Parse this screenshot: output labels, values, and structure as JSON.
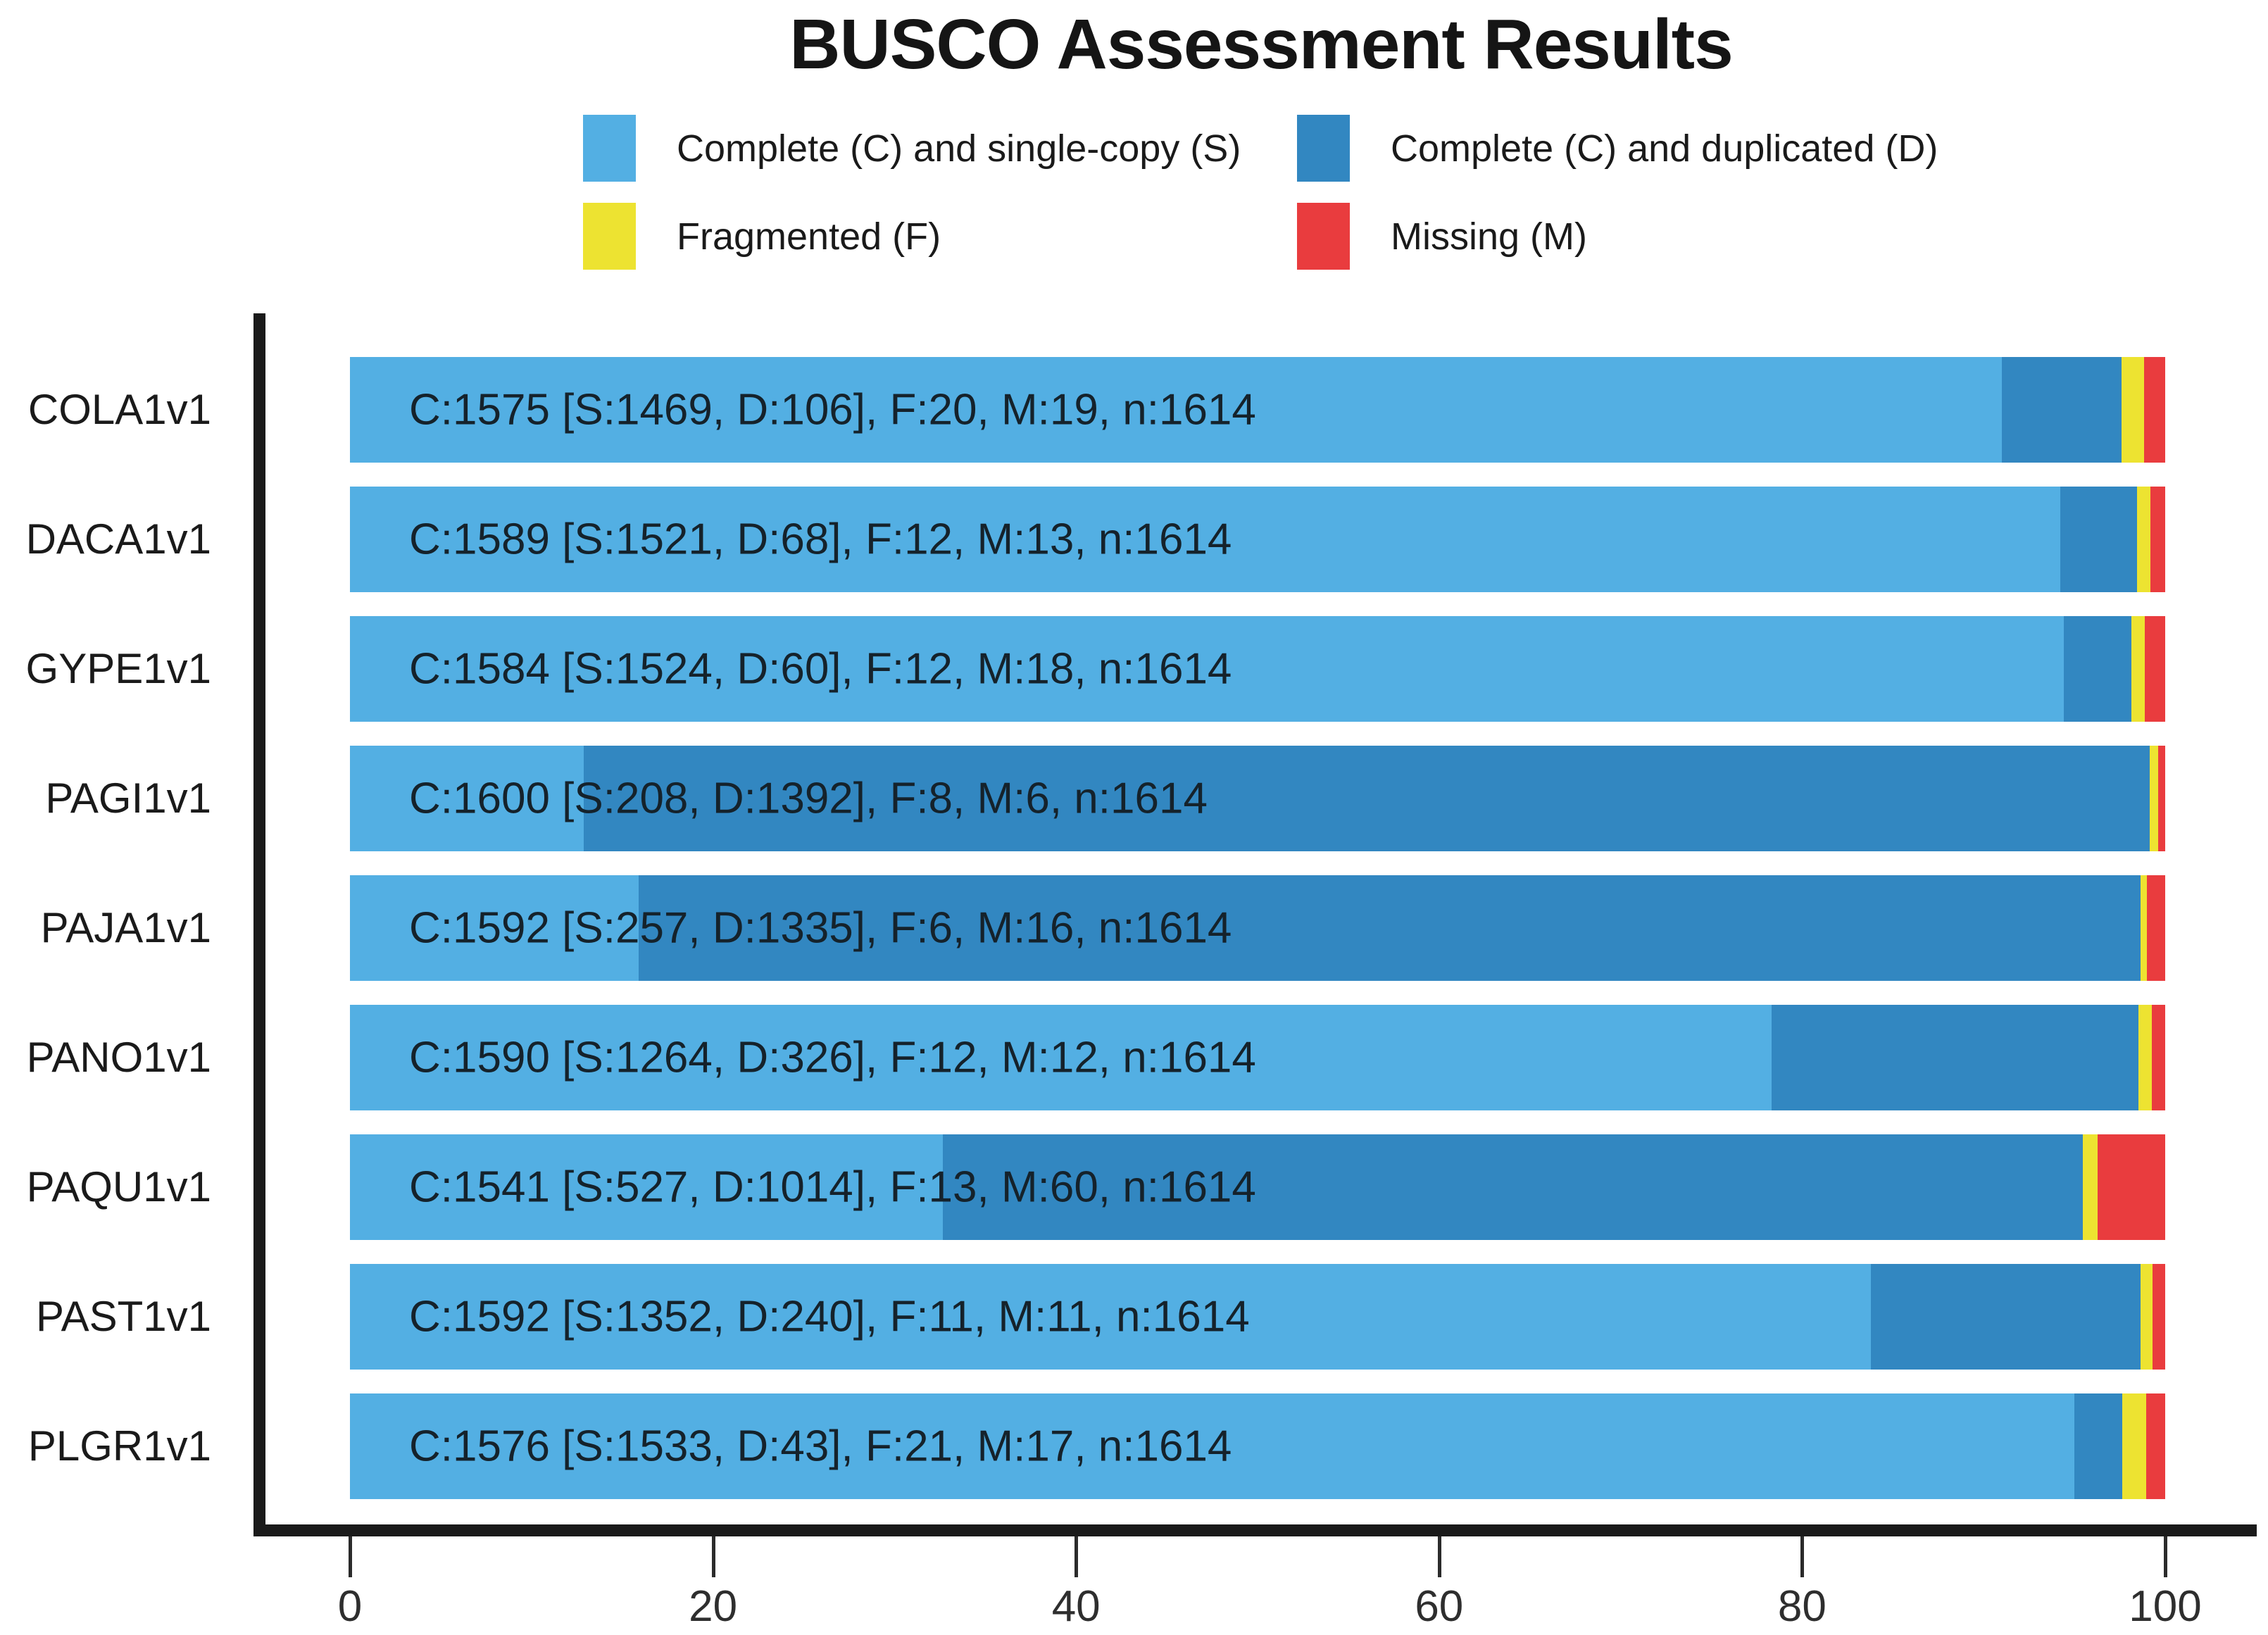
{
  "title": "BUSCO Assessment Results",
  "colors": {
    "single": "#53AFE3",
    "duplicated": "#3287C1",
    "fragmented": "#EDE331",
    "missing": "#E93C3E",
    "axis": "#1a1a1a",
    "background": "#ffffff"
  },
  "legend": {
    "items": [
      {
        "key": "single",
        "label": "Complete (C) and single-copy (S)",
        "color": "#53AFE3"
      },
      {
        "key": "duplicated",
        "label": "Complete (C) and duplicated (D)",
        "color": "#3287C1"
      },
      {
        "key": "fragmented",
        "label": "Fragmented (F)",
        "color": "#EDE331"
      },
      {
        "key": "missing",
        "label": "Missing (M)",
        "color": "#E93C3E"
      }
    ]
  },
  "chart_data": {
    "type": "bar",
    "orientation": "horizontal",
    "stacked": true,
    "title": "BUSCO Assessment Results",
    "xlabel": "",
    "ylabel": "",
    "xlim": [
      0,
      100
    ],
    "x_ticks": [
      0,
      20,
      40,
      60,
      80,
      100
    ],
    "total_per_category": 1614,
    "categories": [
      "COLA1v1",
      "DACA1v1",
      "GYPE1v1",
      "PAGI1v1",
      "PAJA1v1",
      "PANO1v1",
      "PAQU1v1",
      "PAST1v1",
      "PLGR1v1"
    ],
    "series": [
      {
        "key": "single",
        "name": "Complete (C) and single-copy (S)",
        "values": [
          1469,
          1521,
          1524,
          208,
          257,
          1264,
          527,
          1352,
          1533
        ]
      },
      {
        "key": "duplicated",
        "name": "Complete (C) and duplicated (D)",
        "values": [
          106,
          68,
          60,
          1392,
          1335,
          326,
          1014,
          240,
          43
        ]
      },
      {
        "key": "fragmented",
        "name": "Fragmented (F)",
        "values": [
          20,
          12,
          12,
          8,
          6,
          12,
          13,
          11,
          21
        ]
      },
      {
        "key": "missing",
        "name": "Missing (M)",
        "values": [
          19,
          13,
          18,
          6,
          16,
          12,
          60,
          11,
          17
        ]
      }
    ],
    "bar_labels": [
      "C:1575 [S:1469, D:106], F:20, M:19, n:1614",
      "C:1589 [S:1521, D:68], F:12, M:13, n:1614",
      "C:1584 [S:1524, D:60], F:12, M:18, n:1614",
      "C:1600 [S:208, D:1392], F:8, M:6, n:1614",
      "C:1592 [S:257, D:1335], F:6, M:16, n:1614",
      "C:1590 [S:1264, D:326], F:12, M:12, n:1614",
      "C:1541 [S:527, D:1014], F:13, M:60, n:1614",
      "C:1592 [S:1352, D:240], F:11, M:11, n:1614",
      "C:1576 [S:1533, D:43], F:21, M:17, n:1614"
    ]
  }
}
